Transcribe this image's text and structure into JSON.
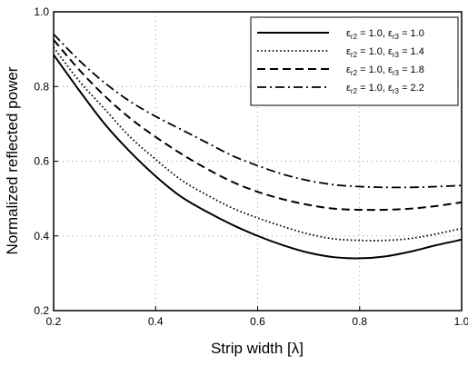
{
  "chart_data": {
    "type": "line",
    "xlabel": "Strip width [λ]",
    "ylabel": "Normalized reflected power",
    "xlim": [
      0.2,
      1.0
    ],
    "ylim": [
      0.2,
      1.0
    ],
    "x_ticks": [
      "0.2",
      "0.4",
      "0.6",
      "0.8",
      "1.0"
    ],
    "y_ticks": [
      "0.2",
      "0.4",
      "0.6",
      "0.8",
      "1.0"
    ],
    "grid": "dotted",
    "legend_position": "top-right",
    "series": [
      {
        "name": "εr2 = 1.0, εr3 = 1.0",
        "legend": {
          "a": "r2",
          "av": "1.0",
          "b": "r3",
          "bv": "1.0"
        },
        "line_style": "solid",
        "x": [
          0.2,
          0.25,
          0.3,
          0.35,
          0.4,
          0.45,
          0.5,
          0.55,
          0.6,
          0.65,
          0.7,
          0.75,
          0.8,
          0.85,
          0.9,
          0.95,
          1.0
        ],
        "y": [
          0.885,
          0.79,
          0.7,
          0.625,
          0.56,
          0.505,
          0.465,
          0.43,
          0.4,
          0.375,
          0.355,
          0.343,
          0.34,
          0.345,
          0.358,
          0.375,
          0.39
        ]
      },
      {
        "name": "εr2 = 1.0, εr3 = 1.4",
        "legend": {
          "a": "r2",
          "av": "1.0",
          "b": "r3",
          "bv": "1.4"
        },
        "line_style": "dotted",
        "x": [
          0.2,
          0.25,
          0.3,
          0.35,
          0.4,
          0.45,
          0.5,
          0.55,
          0.6,
          0.65,
          0.7,
          0.75,
          0.8,
          0.85,
          0.9,
          0.95,
          1.0
        ],
        "y": [
          0.905,
          0.815,
          0.74,
          0.665,
          0.605,
          0.55,
          0.51,
          0.475,
          0.448,
          0.425,
          0.405,
          0.392,
          0.388,
          0.388,
          0.393,
          0.405,
          0.42
        ]
      },
      {
        "name": "εr2 = 1.0, εr3 = 1.8",
        "legend": {
          "a": "r2",
          "av": "1.0",
          "b": "r3",
          "bv": "1.8"
        },
        "line_style": "dashed",
        "x": [
          0.2,
          0.25,
          0.3,
          0.35,
          0.4,
          0.45,
          0.5,
          0.55,
          0.6,
          0.65,
          0.7,
          0.75,
          0.8,
          0.85,
          0.9,
          0.95,
          1.0
        ],
        "y": [
          0.925,
          0.845,
          0.775,
          0.715,
          0.665,
          0.62,
          0.58,
          0.545,
          0.518,
          0.498,
          0.483,
          0.473,
          0.47,
          0.47,
          0.473,
          0.48,
          0.49
        ]
      },
      {
        "name": "εr2 = 1.0, εr3 = 2.2",
        "legend": {
          "a": "r2",
          "av": "1.0",
          "b": "r3",
          "bv": "2.2"
        },
        "line_style": "dashdot",
        "x": [
          0.2,
          0.25,
          0.3,
          0.35,
          0.4,
          0.45,
          0.5,
          0.55,
          0.6,
          0.65,
          0.7,
          0.75,
          0.8,
          0.85,
          0.9,
          0.95,
          1.0
        ],
        "y": [
          0.94,
          0.87,
          0.81,
          0.76,
          0.72,
          0.685,
          0.65,
          0.615,
          0.588,
          0.565,
          0.548,
          0.537,
          0.532,
          0.53,
          0.53,
          0.532,
          0.535
        ]
      }
    ]
  }
}
